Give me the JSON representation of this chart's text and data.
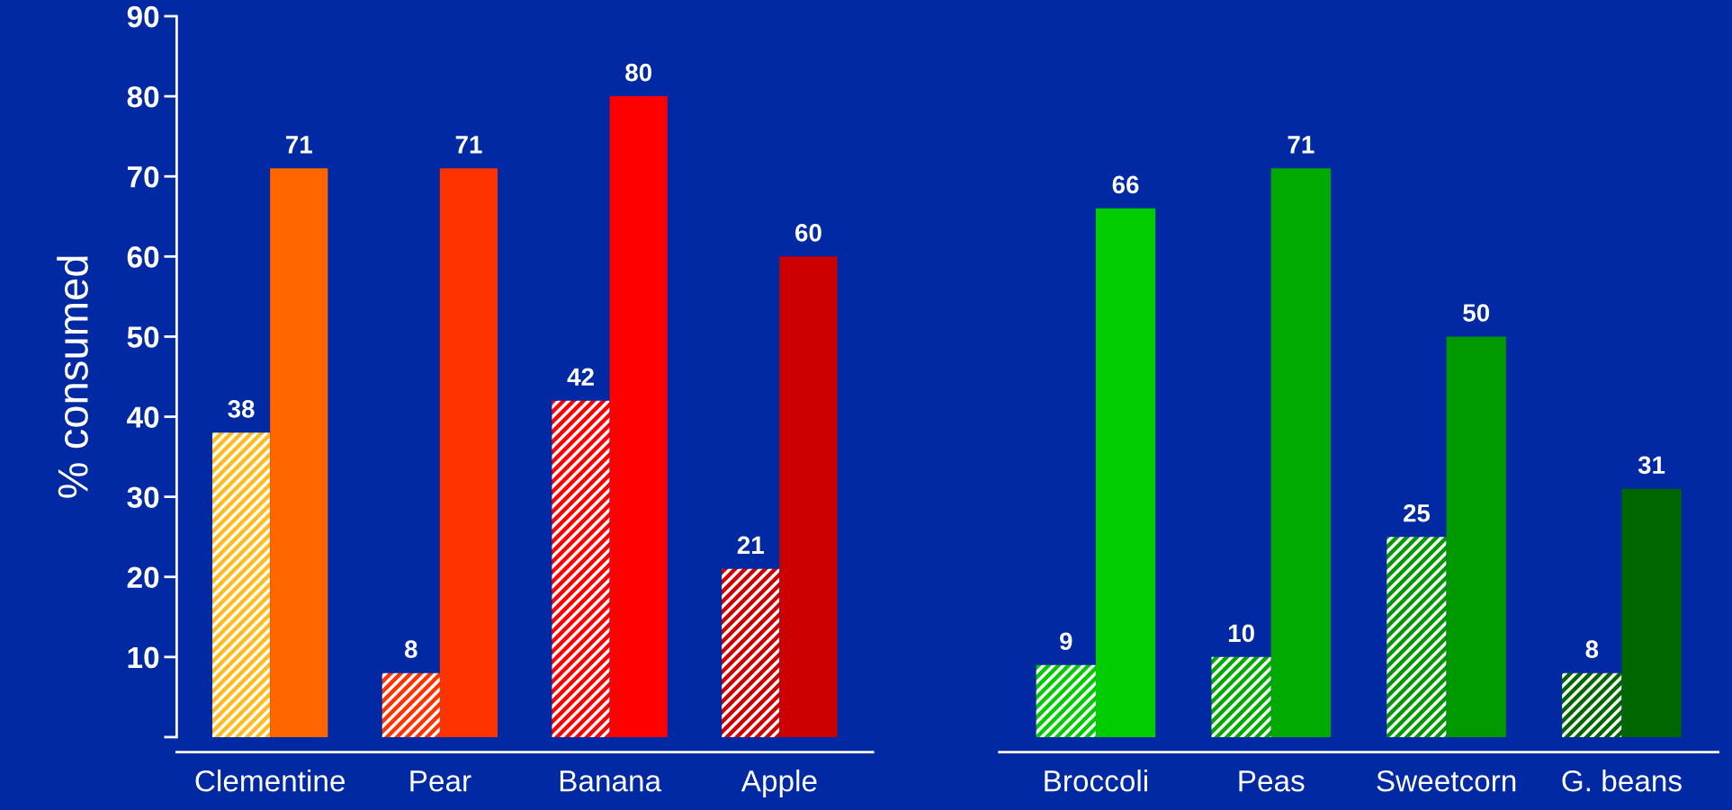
{
  "chart_data": [
    {
      "type": "bar",
      "ylabel": "% consumed",
      "categories": [
        "Clementine",
        "Pear",
        "Banana",
        "Apple"
      ],
      "series": [
        {
          "colors": [
            "#ffbb22",
            "#ff3300",
            "#ff0000",
            "#cc0000"
          ],
          "values": [
            38,
            8,
            42,
            21
          ]
        },
        {
          "colors": [
            "#ff6600",
            "#ff3300",
            "#ff0000",
            "#cc0000"
          ],
          "values": [
            71,
            71,
            80,
            60
          ]
        }
      ],
      "ylim": [
        0,
        90
      ],
      "yticks": [
        {
          "value": 0,
          "label": null
        },
        10,
        20,
        30,
        40,
        50,
        60,
        70,
        80,
        90
      ],
      "data_labels": true,
      "grid": false
    },
    {
      "type": "bar",
      "categories": [
        "Broccoli",
        "Peas",
        "Sweetcorn",
        "G. beans"
      ],
      "series": [
        {
          "colors": [
            "#00cc00",
            "#00aa00",
            "#009900",
            "#006600"
          ],
          "values": [
            9,
            10,
            25,
            8
          ]
        },
        {
          "colors": [
            "#00cc00",
            "#00aa00",
            "#009900",
            "#006600"
          ],
          "values": [
            66,
            71,
            50,
            31
          ]
        }
      ],
      "ylim": [
        0,
        90
      ],
      "tick_labels": "x",
      "data_labels": true,
      "grid": false
    }
  ]
}
